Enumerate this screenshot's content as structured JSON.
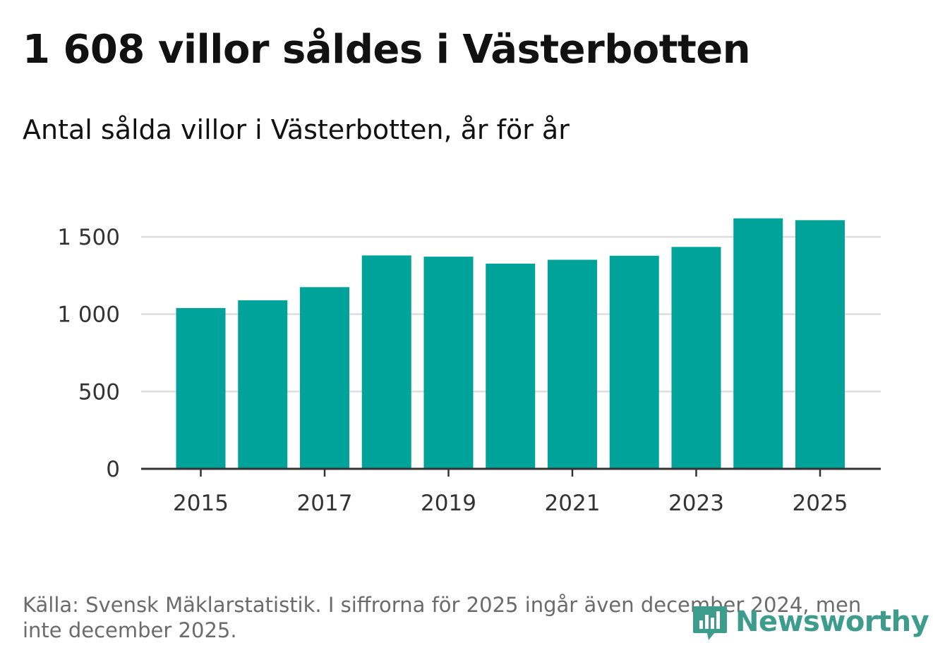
{
  "title": "1 608 villor såldes i Västerbotten",
  "subtitle": "Antal sålda villor i Västerbotten, år för år",
  "source": "Källa: Svensk Mäklarstatistik. I siffrorna för 2025 ingår även december 2024, men inte december 2025.",
  "logo": {
    "text": "Newsworthy",
    "icon": "bar-chart-bubble-icon"
  },
  "colors": {
    "bar": "#00a39a",
    "grid": "#dddddd",
    "axis": "#333333",
    "logo": "#3d9c8c"
  },
  "chart_data": {
    "type": "bar",
    "title": "1 608 villor såldes i Västerbotten",
    "subtitle": "Antal sålda villor i Västerbotten, år för år",
    "xlabel": "",
    "ylabel": "",
    "categories": [
      "2015",
      "2016",
      "2017",
      "2018",
      "2019",
      "2020",
      "2021",
      "2022",
      "2023",
      "2024",
      "2025"
    ],
    "values": [
      1040,
      1090,
      1175,
      1380,
      1372,
      1327,
      1352,
      1378,
      1435,
      1620,
      1608
    ],
    "x_tick_labels": [
      "2015",
      "2017",
      "2019",
      "2021",
      "2023",
      "2025"
    ],
    "y_ticks": [
      0,
      500,
      1000,
      1500
    ],
    "y_tick_labels": [
      "0",
      "500",
      "1 000",
      "1 500"
    ],
    "ylim": [
      0,
      1650
    ],
    "grid": true,
    "legend": "none"
  }
}
